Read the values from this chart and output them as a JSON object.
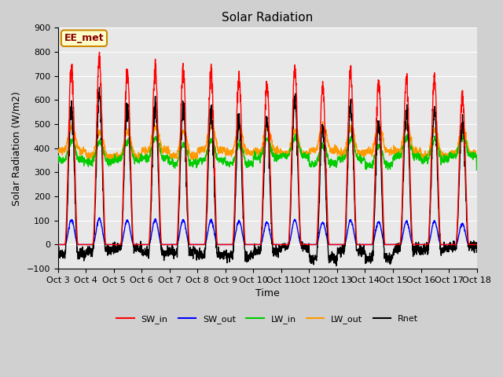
{
  "title": "Solar Radiation",
  "ylabel": "Solar Radiation (W/m2)",
  "xlabel": "Time",
  "ylim": [
    -100,
    900
  ],
  "plot_bg_color": "#e8e8e8",
  "fig_bg_color": "#d0d0d0",
  "annotation_text": "EE_met",
  "annotation_bg": "#ffffcc",
  "annotation_border": "#cc8800",
  "series": {
    "SW_in": {
      "color": "#ff0000",
      "lw": 1.0
    },
    "SW_out": {
      "color": "#0000ff",
      "lw": 1.0
    },
    "LW_in": {
      "color": "#00cc00",
      "lw": 1.0
    },
    "LW_out": {
      "color": "#ff9900",
      "lw": 1.0
    },
    "Rnet": {
      "color": "#000000",
      "lw": 1.0
    }
  },
  "x_tick_labels": [
    "Oct 3",
    "Oct 4",
    "Oct 5",
    "Oct 6",
    "Oct 7",
    "Oct 8",
    "Oct 9",
    "Oct 10",
    "Oct 11",
    "Oct 12",
    "Oct 13",
    "Oct 14",
    "Oct 15",
    "Oct 16",
    "Oct 17",
    "Oct 18"
  ],
  "sw_in_peaks": [
    770,
    800,
    755,
    770,
    760,
    755,
    725,
    690,
    750,
    690,
    750,
    710,
    720,
    720,
    650
  ],
  "n_days": 15,
  "points_per_day": 144
}
